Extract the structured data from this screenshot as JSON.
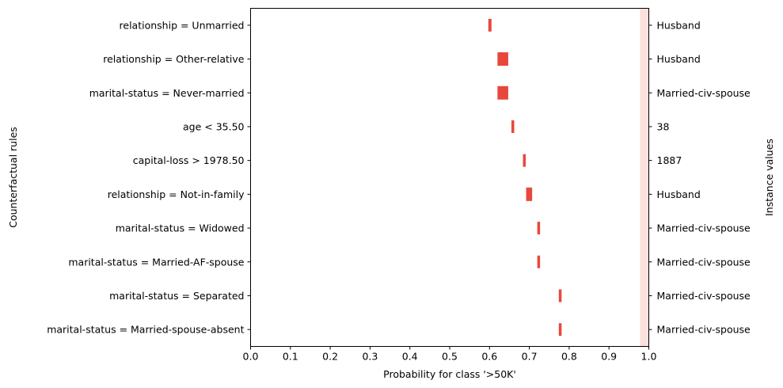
{
  "chart_data": {
    "type": "bar",
    "xlabel": "Probability for class '>50K'",
    "ylabel_left": "Counterfactual rules",
    "ylabel_right": "Instance values",
    "xlim": [
      0.0,
      1.0
    ],
    "xticks": [
      "0.0",
      "0.1",
      "0.2",
      "0.3",
      "0.4",
      "0.5",
      "0.6",
      "0.7",
      "0.8",
      "0.9",
      "1.0"
    ],
    "bar_color": "#e8483b",
    "shade_color": "#fbe0dc",
    "shade_range": [
      0.978,
      1.0
    ],
    "rules": [
      {
        "label": "relationship = Unmarried",
        "instance_value": "Husband",
        "low": 0.597,
        "high": 0.605
      },
      {
        "label": "relationship = Other-relative",
        "instance_value": "Husband",
        "low": 0.62,
        "high": 0.647
      },
      {
        "label": "marital-status = Never-married",
        "instance_value": "Married-civ-spouse",
        "low": 0.62,
        "high": 0.647
      },
      {
        "label": "age < 35.50",
        "instance_value": "38",
        "low": 0.655,
        "high": 0.662
      },
      {
        "label": "capital-loss > 1978.50",
        "instance_value": "1887",
        "low": 0.684,
        "high": 0.691
      },
      {
        "label": "relationship = Not-in-family",
        "instance_value": "Husband",
        "low": 0.692,
        "high": 0.707
      },
      {
        "label": "marital-status = Widowed",
        "instance_value": "Married-civ-spouse",
        "low": 0.72,
        "high": 0.726
      },
      {
        "label": "marital-status = Married-AF-spouse",
        "instance_value": "Married-civ-spouse",
        "low": 0.72,
        "high": 0.726
      },
      {
        "label": "marital-status = Separated",
        "instance_value": "Married-civ-spouse",
        "low": 0.774,
        "high": 0.781
      },
      {
        "label": "marital-status = Married-spouse-absent",
        "instance_value": "Married-civ-spouse",
        "low": 0.774,
        "high": 0.781
      }
    ]
  }
}
